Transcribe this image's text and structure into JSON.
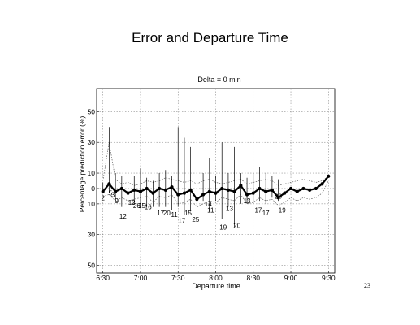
{
  "slide": {
    "title": "Error and Departure Time",
    "page_number": "23"
  },
  "chart_data": {
    "type": "line",
    "title": "Delta = 0 min",
    "xlabel": "Departure time",
    "ylabel": "Percentage prediction error (%)",
    "xlim": [
      385,
      575
    ],
    "ylim": [
      -55,
      65
    ],
    "x_ticks": [
      {
        "value": 390,
        "label": "6:30"
      },
      {
        "value": 420,
        "label": "7:00"
      },
      {
        "value": 450,
        "label": "7:30"
      },
      {
        "value": 480,
        "label": "8:00"
      },
      {
        "value": 510,
        "label": "8:30"
      },
      {
        "value": 540,
        "label": "9:00"
      },
      {
        "value": 570,
        "label": "9:30"
      }
    ],
    "y_ticks": [
      {
        "value": 50,
        "label": "50"
      },
      {
        "value": 30,
        "label": "30"
      },
      {
        "value": 10,
        "label": "10"
      },
      {
        "value": 0,
        "label": "0"
      },
      {
        "value": -10,
        "label": "10"
      },
      {
        "value": -30,
        "label": "30"
      },
      {
        "value": -50,
        "label": "50"
      }
    ],
    "grid": true,
    "mean_series": {
      "x": [
        390,
        395,
        400,
        405,
        410,
        415,
        420,
        425,
        430,
        435,
        440,
        445,
        450,
        455,
        460,
        465,
        470,
        475,
        480,
        485,
        490,
        495,
        500,
        505,
        510,
        515,
        520,
        525,
        530,
        535,
        540,
        545,
        550,
        555,
        560,
        565,
        570
      ],
      "y": [
        -2,
        3,
        -2,
        0,
        -3,
        -1,
        -2,
        0,
        -3,
        0,
        -1,
        1,
        -4,
        -3,
        -1,
        -7,
        -4,
        -2,
        -3,
        0,
        -1,
        -2,
        2,
        -4,
        -3,
        0,
        -2,
        -1,
        -6,
        -3,
        0,
        -2,
        0,
        -1,
        0,
        3,
        8
      ]
    },
    "range_bars": [
      {
        "x": 390,
        "high": 4,
        "low": -3
      },
      {
        "x": 395,
        "high": 40,
        "low": -3
      },
      {
        "x": 400,
        "high": 10,
        "low": -8
      },
      {
        "x": 405,
        "high": 8,
        "low": -12
      },
      {
        "x": 410,
        "high": 15,
        "low": -20
      },
      {
        "x": 415,
        "high": 8,
        "low": -10
      },
      {
        "x": 420,
        "high": 13,
        "low": -10
      },
      {
        "x": 425,
        "high": 7,
        "low": -12
      },
      {
        "x": 430,
        "high": 5,
        "low": -12
      },
      {
        "x": 435,
        "high": 10,
        "low": -12
      },
      {
        "x": 440,
        "high": 12,
        "low": -12
      },
      {
        "x": 445,
        "high": 8,
        "low": -14
      },
      {
        "x": 450,
        "high": 40,
        "low": -12
      },
      {
        "x": 455,
        "high": 33,
        "low": -17
      },
      {
        "x": 460,
        "high": 27,
        "low": -15
      },
      {
        "x": 465,
        "high": 37,
        "low": -18
      },
      {
        "x": 470,
        "high": 10,
        "low": -8
      },
      {
        "x": 475,
        "high": 20,
        "low": -15
      },
      {
        "x": 480,
        "high": 8,
        "low": -8
      },
      {
        "x": 485,
        "high": 30,
        "low": -20
      },
      {
        "x": 490,
        "high": 10,
        "low": -12
      },
      {
        "x": 495,
        "high": 27,
        "low": -25
      },
      {
        "x": 500,
        "high": 10,
        "low": -10
      },
      {
        "x": 505,
        "high": 7,
        "low": -10
      },
      {
        "x": 510,
        "high": 10,
        "low": -10
      },
      {
        "x": 515,
        "high": 14,
        "low": -8
      },
      {
        "x": 520,
        "high": 10,
        "low": -10
      },
      {
        "x": 525,
        "high": 8,
        "low": -6
      },
      {
        "x": 530,
        "high": 6,
        "low": -8
      }
    ],
    "upper_band": {
      "x": [
        390,
        395,
        400,
        405,
        410,
        415,
        420,
        425,
        430,
        435,
        440,
        445,
        450,
        455,
        460,
        465,
        470,
        475,
        480,
        485,
        490,
        495,
        500,
        505,
        510,
        515,
        520,
        525,
        530,
        535,
        540,
        545,
        550,
        555,
        560,
        565,
        570
      ],
      "y": [
        5,
        30,
        6,
        3,
        4,
        2,
        3,
        5,
        4,
        5,
        7,
        6,
        5,
        4,
        5,
        3,
        5,
        6,
        4,
        3,
        4,
        5,
        6,
        3,
        4,
        5,
        6,
        5,
        2,
        3,
        4,
        5,
        6,
        5,
        4,
        5,
        8
      ]
    },
    "lower_band": {
      "x": [
        390,
        395,
        400,
        405,
        410,
        415,
        420,
        425,
        430,
        435,
        440,
        445,
        450,
        455,
        460,
        465,
        470,
        475,
        480,
        485,
        490,
        495,
        500,
        505,
        510,
        515,
        520,
        525,
        530,
        535,
        540,
        545,
        550,
        555,
        560,
        565,
        570
      ],
      "y": [
        -5,
        -4,
        -8,
        -6,
        -8,
        -7,
        -6,
        -5,
        -9,
        -5,
        -6,
        -4,
        -10,
        -9,
        -7,
        -12,
        -10,
        -8,
        -9,
        -6,
        -7,
        -8,
        -4,
        -10,
        -9,
        -6,
        -8,
        -7,
        -11,
        -9,
        -6,
        -8,
        -6,
        -7,
        -6,
        -3,
        5
      ]
    },
    "sample_counts": [
      {
        "x": 390,
        "y": -6,
        "label": "2"
      },
      {
        "x": 396,
        "y": -3,
        "label": "5"
      },
      {
        "x": 398,
        "y": -4,
        "label": "3"
      },
      {
        "x": 401,
        "y": -8,
        "label": "9"
      },
      {
        "x": 406,
        "y": -18,
        "label": "12"
      },
      {
        "x": 413,
        "y": -9,
        "label": "12"
      },
      {
        "x": 417,
        "y": -11,
        "label": "26"
      },
      {
        "x": 421,
        "y": -11,
        "label": "15"
      },
      {
        "x": 426,
        "y": -12,
        "label": "16"
      },
      {
        "x": 436,
        "y": -16,
        "label": "17"
      },
      {
        "x": 441,
        "y": -16,
        "label": "20"
      },
      {
        "x": 447,
        "y": -17,
        "label": "11"
      },
      {
        "x": 453,
        "y": -21,
        "label": "17"
      },
      {
        "x": 458,
        "y": -16,
        "label": "15"
      },
      {
        "x": 464,
        "y": -20,
        "label": "25"
      },
      {
        "x": 474,
        "y": -10,
        "label": "14"
      },
      {
        "x": 476,
        "y": -14,
        "label": "11"
      },
      {
        "x": 486,
        "y": -25,
        "label": "19"
      },
      {
        "x": 491,
        "y": -13,
        "label": "13"
      },
      {
        "x": 497,
        "y": -24,
        "label": "20"
      },
      {
        "x": 505,
        "y": -8,
        "label": "13"
      },
      {
        "x": 514,
        "y": -14,
        "label": "17"
      },
      {
        "x": 520,
        "y": -16,
        "label": "17"
      },
      {
        "x": 530,
        "y": -5,
        "label": "20"
      },
      {
        "x": 533,
        "y": -14,
        "label": "19"
      }
    ]
  }
}
